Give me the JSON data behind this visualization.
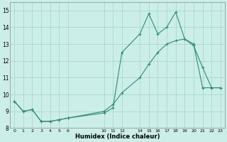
{
  "line1_x": [
    0,
    1,
    2,
    3,
    4,
    5,
    6,
    10,
    11,
    12,
    14,
    15,
    16,
    17,
    18,
    19,
    20,
    21,
    22,
    23
  ],
  "line1_y": [
    9.6,
    9.0,
    9.1,
    8.4,
    8.4,
    8.5,
    8.6,
    8.9,
    9.2,
    12.5,
    13.6,
    14.8,
    13.6,
    14.0,
    14.9,
    13.3,
    12.9,
    11.6,
    10.4,
    10.4
  ],
  "line2_x": [
    0,
    1,
    2,
    3,
    4,
    5,
    6,
    10,
    11,
    12,
    14,
    15,
    16,
    17,
    18,
    19,
    20,
    21,
    22,
    23
  ],
  "line2_y": [
    9.6,
    9.0,
    9.1,
    8.4,
    8.4,
    8.5,
    8.6,
    9.0,
    9.4,
    10.1,
    11.0,
    11.8,
    12.5,
    13.0,
    13.2,
    13.3,
    13.0,
    10.4,
    10.4,
    10.4
  ],
  "color": "#2e8b7a",
  "bg_color": "#cceee8",
  "grid_color": "#aad8d2",
  "xlabel": "Humidex (Indice chaleur)",
  "ylim": [
    8,
    15.5
  ],
  "xlim": [
    -0.5,
    23.5
  ],
  "yticks": [
    8,
    9,
    10,
    11,
    12,
    13,
    14,
    15
  ],
  "xticks": [
    0,
    1,
    2,
    3,
    4,
    5,
    6,
    10,
    11,
    12,
    14,
    15,
    16,
    17,
    18,
    19,
    20,
    21,
    22,
    23
  ],
  "xtick_labels": [
    "0",
    "1",
    "2",
    "3",
    "4",
    "5",
    "6",
    "10",
    "11",
    "12",
    "14",
    "15",
    "16",
    "17",
    "18",
    "19",
    "20",
    "21",
    "22",
    "23"
  ],
  "marker": "+",
  "markersize": 3,
  "linewidth": 0.8
}
